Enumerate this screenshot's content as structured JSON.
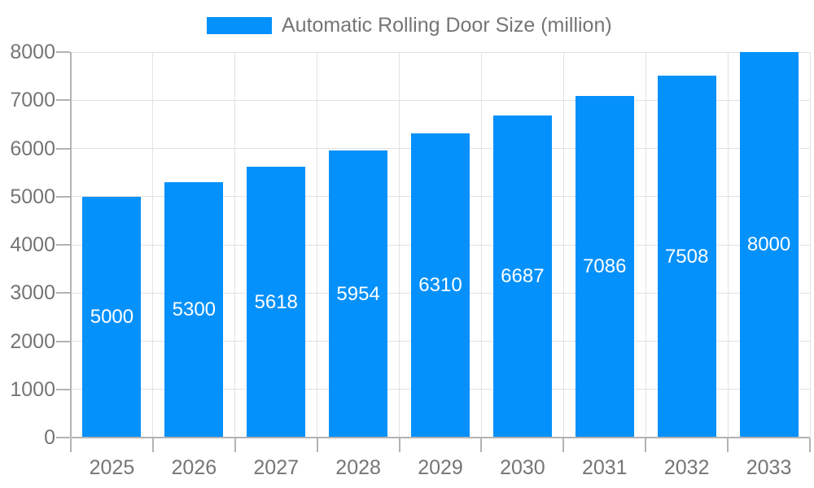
{
  "chart_data": {
    "type": "bar",
    "title": "Automatic Rolling Door Size (million)",
    "categories": [
      "2025",
      "2026",
      "2027",
      "2028",
      "2029",
      "2030",
      "2031",
      "2032",
      "2033"
    ],
    "series": [
      {
        "name": "Automatic Rolling Door Size (million)",
        "values": [
          5000,
          5300,
          5618,
          5954,
          6310,
          6687,
          7086,
          7508,
          8000
        ]
      }
    ],
    "bar_labels": [
      "5000",
      "5300",
      "5618",
      "5954",
      "6310",
      "6687",
      "7086",
      "7508",
      "8000"
    ],
    "xlabel": "",
    "ylabel": "",
    "ylim": [
      0,
      8000
    ],
    "yticks": [
      0,
      1000,
      2000,
      3000,
      4000,
      5000,
      6000,
      7000,
      8000
    ],
    "grid": true,
    "legend_position": "top",
    "colors": {
      "bar": "#0591fb",
      "bar_label": "#ffffff",
      "axis_text": "#757575",
      "grid_line": "#e2e2e2",
      "axis_line": "#b3b3b3",
      "background": "#ffffff"
    }
  }
}
